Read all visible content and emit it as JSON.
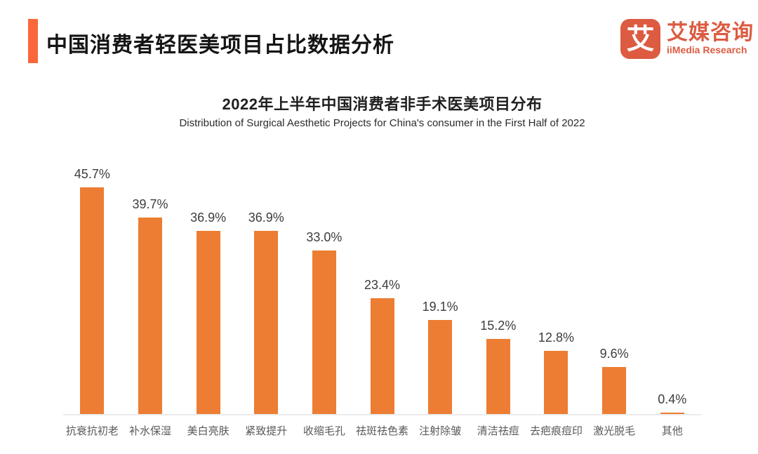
{
  "page": {
    "title": "中国消费者轻医美项目占比数据分析",
    "accent_color": "#F9673B",
    "background_color": "#FFFFFF"
  },
  "logo": {
    "icon_char": "艾",
    "icon_name": "iimedia-logo-icon",
    "name_cn": "艾媒咨询",
    "name_en": "iiMedia Research",
    "brand_color": "#DC5B41"
  },
  "chart_data": {
    "type": "bar",
    "title": "2022年上半年中国消费者非手术医美项目分布",
    "subtitle": "Distribution of Surgical Aesthetic Projects for China's consumer in the First Half of 2022",
    "categories": [
      "抗衰抗初老",
      "补水保湿",
      "美白亮肤",
      "紧致提升",
      "收缩毛孔",
      "祛斑祛色素",
      "注射除皱",
      "清洁祛痘",
      "去疤痕痘印",
      "激光脱毛",
      "其他"
    ],
    "values": [
      45.7,
      39.7,
      36.9,
      36.9,
      33.0,
      23.4,
      19.1,
      15.2,
      12.8,
      9.6,
      0.4
    ],
    "unit": "%",
    "value_labels": [
      "45.7%",
      "39.7%",
      "36.9%",
      "36.9%",
      "33.0%",
      "23.4%",
      "19.1%",
      "15.2%",
      "12.8%",
      "9.6%",
      "0.4%"
    ],
    "bar_color": "#EC7D33",
    "value_label_color": "#3d3d3d",
    "axis_label_color": "#595959",
    "ylim": [
      0,
      50
    ],
    "grid": false,
    "legend": false,
    "data_labels_position": "above-bar"
  }
}
